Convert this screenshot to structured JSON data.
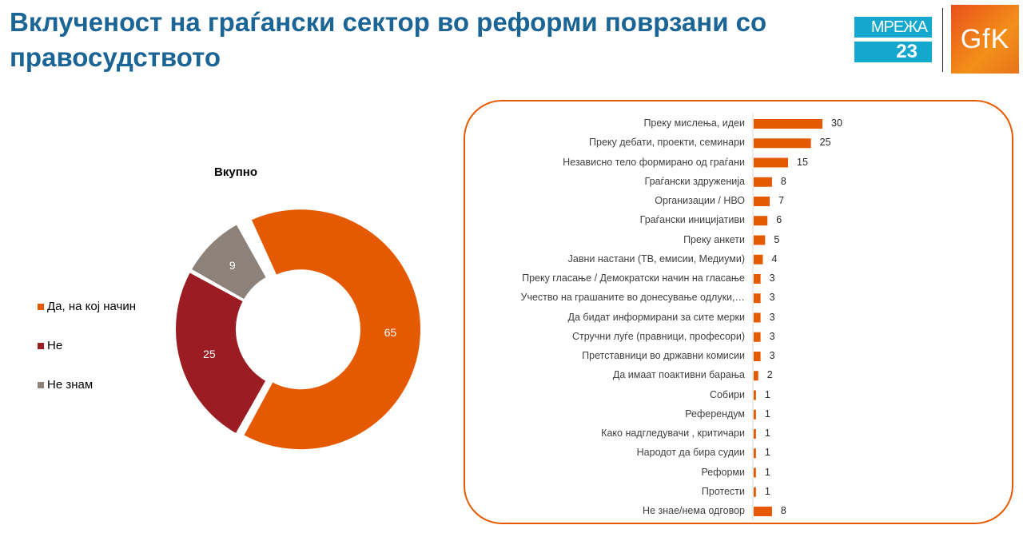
{
  "header": {
    "title": "Вклученост на граѓански сектор во реформи поврзани со правосудството",
    "logo_mreza_line1": "МРЕЖА",
    "logo_mreza_line2": "23",
    "logo_gfk": "GfK"
  },
  "colors": {
    "orange": "#E55A00",
    "darkred": "#9B1D23",
    "gray": "#8C827A",
    "title": "#1A6496"
  },
  "chart_data": [
    {
      "type": "pie",
      "title": "Вкупно",
      "donut": true,
      "categories": [
        "Да, на кој начин",
        "Не",
        "Не знам"
      ],
      "values": [
        65,
        25,
        9
      ],
      "colors": [
        "#E55A00",
        "#9B1D23",
        "#8C827A"
      ],
      "legend": "left"
    },
    {
      "type": "bar",
      "orientation": "horizontal",
      "xlim": [
        0,
        30
      ],
      "categories": [
        "Преку мислења, идеи",
        "Преку дебати, проекти, семинари",
        "Независно тело  формирано од граѓани",
        "Граѓански здруженија",
        "Организации / НВО",
        "Граѓански иницијативи",
        "Преку анкети",
        "Јавни настани (ТВ, емисии, Медиуми)",
        "Преку гласање / Демократски начин на гласање",
        "Учество на грашаните во донесување одлуки,…",
        "Да бидат информирани за сите мерки",
        "Стручни луѓе (правници, професори)",
        "Претставници во државни комисии",
        "Да имаат поактивни барања",
        "Собири",
        "Референдум",
        "Како надгледувачи , критичари",
        "Народот да бира судии",
        "Реформи",
        "Протести",
        "Не знае/нема одговор"
      ],
      "values": [
        30,
        25,
        15,
        8,
        7,
        6,
        5,
        4,
        3,
        3,
        3,
        3,
        3,
        2,
        1,
        1,
        1,
        1,
        1,
        1,
        8
      ],
      "color": "#E55A00"
    }
  ]
}
